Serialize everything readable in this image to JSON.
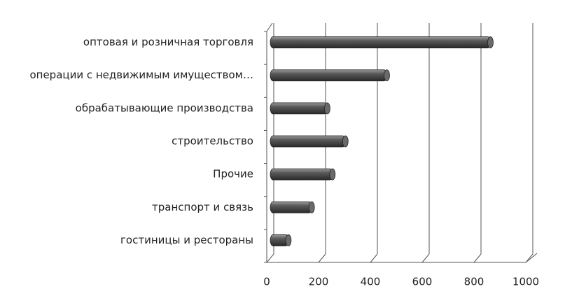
{
  "chart_data": {
    "type": "bar",
    "orientation": "horizontal",
    "categories": [
      "оптовая и розничная торговля",
      "операции с недвижимым имуществом…",
      "обрабатывающие производства",
      "строительство",
      "Прочие",
      "транспорт и связь",
      "гостиницы и рестораны"
    ],
    "values": [
      850,
      450,
      220,
      290,
      240,
      160,
      70
    ],
    "color": "#555555",
    "xlim": [
      0,
      1000
    ],
    "xticks": [
      0,
      200,
      400,
      600,
      800,
      1000
    ],
    "grid": true
  }
}
